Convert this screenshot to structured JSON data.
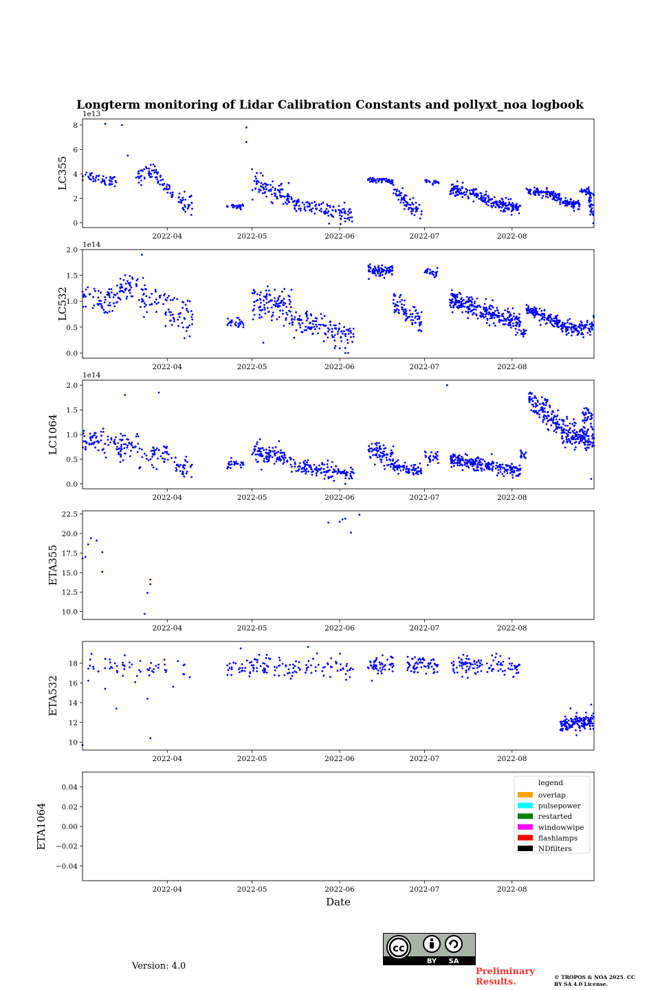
{
  "figure": {
    "title": "Longterm monitoring of Lidar Calibration Constants and pollyxt_noa logbook",
    "xlabel": "Date",
    "version": "Version: 4.0",
    "preliminary": "Preliminary Results.",
    "copyright": "© TROPOS & NOA 2025. CC BY SA 4.0 License.",
    "cc_labels": [
      "cc",
      "BY",
      "SA"
    ]
  },
  "colors": {
    "points": "#0000ff",
    "overlap": "#ffa500",
    "pulsepower": "#00ffff",
    "restarted": "#008000",
    "windowwipe": "#ff00ff",
    "flashlamps": "#ff0000",
    "NDfilters": "#000000"
  },
  "chart_data": [
    {
      "type": "scatter",
      "ylabel": "LC355",
      "offset_label": "1e13",
      "x_ticks": [
        "2022-04",
        "2022-05",
        "2022-06",
        "2022-07",
        "2022-08"
      ],
      "y_ticks": [
        "0",
        "2",
        "4",
        "6",
        "8"
      ],
      "y_tick_values": [
        0,
        2,
        4,
        6,
        8
      ],
      "ylim": [
        -0.4,
        8.5
      ],
      "xlim": [
        "2022-03-02",
        "2022-08-30"
      ],
      "series": [
        {
          "segments": [
            {
              "start": "2022-03-02",
              "end": "2022-03-14",
              "y0": 3.9,
              "y1": 3.4,
              "sd": 0.25,
              "n": 50
            },
            {
              "start": "2022-03-20",
              "end": "2022-03-28",
              "y0": 3.5,
              "y1": 4.4,
              "sd": 0.3,
              "n": 40
            },
            {
              "start": "2022-03-28",
              "end": "2022-04-03",
              "y0": 3.7,
              "y1": 2.4,
              "sd": 0.3,
              "n": 35
            },
            {
              "start": "2022-04-05",
              "end": "2022-04-10",
              "y0": 1.8,
              "y1": 1.5,
              "sd": 0.4,
              "n": 30
            },
            {
              "start": "2022-04-22",
              "end": "2022-04-28",
              "y0": 1.4,
              "y1": 1.3,
              "sd": 0.1,
              "n": 25
            },
            {
              "start": "2022-05-01",
              "end": "2022-05-15",
              "y0": 3.3,
              "y1": 2.0,
              "sd": 0.4,
              "n": 90
            },
            {
              "start": "2022-05-15",
              "end": "2022-06-06",
              "y0": 1.6,
              "y1": 0.5,
              "sd": 0.35,
              "n": 110
            },
            {
              "start": "2022-06-11",
              "end": "2022-06-20",
              "y0": 3.5,
              "y1": 3.4,
              "sd": 0.08,
              "n": 60
            },
            {
              "start": "2022-06-20",
              "end": "2022-06-30",
              "y0": 2.6,
              "y1": 0.7,
              "sd": 0.4,
              "n": 70
            },
            {
              "start": "2022-07-01",
              "end": "2022-07-06",
              "y0": 3.4,
              "y1": 3.3,
              "sd": 0.08,
              "n": 25
            },
            {
              "start": "2022-07-10",
              "end": "2022-08-04",
              "y0": 2.8,
              "y1": 1.1,
              "sd": 0.25,
              "n": 230
            },
            {
              "start": "2022-08-06",
              "end": "2022-08-18",
              "y0": 2.7,
              "y1": 2.1,
              "sd": 0.2,
              "n": 100
            },
            {
              "start": "2022-08-18",
              "end": "2022-08-25",
              "y0": 1.7,
              "y1": 1.5,
              "sd": 0.2,
              "n": 60
            },
            {
              "start": "2022-08-25",
              "end": "2022-08-30",
              "y0": 2.6,
              "y1": 2.5,
              "sd": 0.15,
              "n": 30
            },
            {
              "start": "2022-08-28",
              "end": "2022-08-30",
              "y0": 1.7,
              "y1": 0.9,
              "sd": 0.4,
              "n": 25
            }
          ]
        }
      ],
      "outliers": [
        [
          "2022-03-10",
          8.1
        ],
        [
          "2022-03-16",
          8.0
        ],
        [
          "2022-03-18",
          5.5
        ],
        [
          "2022-04-29",
          7.8
        ],
        [
          "2022-04-29",
          6.6
        ],
        [
          "2022-06-03",
          0.1
        ]
      ]
    },
    {
      "type": "scatter",
      "ylabel": "LC532",
      "offset_label": "1e14",
      "x_ticks": [
        "2022-04",
        "2022-05",
        "2022-06",
        "2022-07",
        "2022-08"
      ],
      "y_ticks": [
        "0.0",
        "0.5",
        "1.0",
        "1.5",
        "2.0"
      ],
      "y_tick_values": [
        0,
        0.5,
        1.0,
        1.5,
        2.0
      ],
      "ylim": [
        -0.1,
        2.0
      ],
      "xlim": [
        "2022-03-02",
        "2022-08-30"
      ],
      "series": [
        {
          "segments": [
            {
              "start": "2022-03-02",
              "end": "2022-03-14",
              "y0": 1.05,
              "y1": 0.95,
              "sd": 0.15,
              "n": 60
            },
            {
              "start": "2022-03-14",
              "end": "2022-03-22",
              "y0": 1.2,
              "y1": 1.3,
              "sd": 0.12,
              "n": 50
            },
            {
              "start": "2022-03-22",
              "end": "2022-04-04",
              "y0": 1.1,
              "y1": 0.8,
              "sd": 0.18,
              "n": 60
            },
            {
              "start": "2022-04-04",
              "end": "2022-04-10",
              "y0": 0.7,
              "y1": 0.6,
              "sd": 0.2,
              "n": 30
            },
            {
              "start": "2022-04-22",
              "end": "2022-04-28",
              "y0": 0.6,
              "y1": 0.55,
              "sd": 0.05,
              "n": 25
            },
            {
              "start": "2022-05-01",
              "end": "2022-05-15",
              "y0": 1.0,
              "y1": 0.9,
              "sd": 0.15,
              "n": 110
            },
            {
              "start": "2022-05-15",
              "end": "2022-06-06",
              "y0": 0.65,
              "y1": 0.3,
              "sd": 0.12,
              "n": 130
            },
            {
              "start": "2022-06-11",
              "end": "2022-06-20",
              "y0": 1.6,
              "y1": 1.6,
              "sd": 0.05,
              "n": 80
            },
            {
              "start": "2022-06-20",
              "end": "2022-06-30",
              "y0": 1.0,
              "y1": 0.55,
              "sd": 0.12,
              "n": 80
            },
            {
              "start": "2022-07-01",
              "end": "2022-07-06",
              "y0": 1.58,
              "y1": 1.55,
              "sd": 0.04,
              "n": 25
            },
            {
              "start": "2022-07-10",
              "end": "2022-08-04",
              "y0": 1.05,
              "y1": 0.55,
              "sd": 0.1,
              "n": 280
            },
            {
              "start": "2022-08-04",
              "end": "2022-08-06",
              "y0": 0.35,
              "y1": 0.4,
              "sd": 0.05,
              "n": 15
            },
            {
              "start": "2022-08-06",
              "end": "2022-08-18",
              "y0": 0.85,
              "y1": 0.55,
              "sd": 0.06,
              "n": 120
            },
            {
              "start": "2022-08-18",
              "end": "2022-08-24",
              "y0": 0.5,
              "y1": 0.45,
              "sd": 0.06,
              "n": 60
            },
            {
              "start": "2022-08-24",
              "end": "2022-08-30",
              "y0": 0.4,
              "y1": 0.6,
              "sd": 0.12,
              "n": 50
            }
          ]
        }
      ],
      "outliers": [
        [
          "2022-03-23",
          1.9
        ],
        [
          "2022-04-09",
          1.0
        ],
        [
          "2022-05-05",
          0.2
        ],
        [
          "2022-06-03",
          0.0
        ],
        [
          "2022-06-04",
          0.0
        ]
      ]
    },
    {
      "type": "scatter",
      "ylabel": "LC1064",
      "offset_label": "1e14",
      "x_ticks": [
        "2022-04",
        "2022-05",
        "2022-06",
        "2022-07",
        "2022-08"
      ],
      "y_ticks": [
        "0.0",
        "0.5",
        "1.0",
        "1.5",
        "2.0"
      ],
      "y_tick_values": [
        0,
        0.5,
        1.0,
        1.5,
        2.0
      ],
      "ylim": [
        -0.1,
        2.1
      ],
      "xlim": [
        "2022-03-02",
        "2022-08-30"
      ],
      "series": [
        {
          "segments": [
            {
              "start": "2022-03-02",
              "end": "2022-03-14",
              "y0": 0.9,
              "y1": 0.85,
              "sd": 0.1,
              "n": 60
            },
            {
              "start": "2022-03-14",
              "end": "2022-03-22",
              "y0": 0.75,
              "y1": 0.8,
              "sd": 0.12,
              "n": 50
            },
            {
              "start": "2022-03-22",
              "end": "2022-04-04",
              "y0": 0.6,
              "y1": 0.55,
              "sd": 0.15,
              "n": 50
            },
            {
              "start": "2022-04-04",
              "end": "2022-04-10",
              "y0": 0.35,
              "y1": 0.35,
              "sd": 0.08,
              "n": 30
            },
            {
              "start": "2022-04-22",
              "end": "2022-04-28",
              "y0": 0.4,
              "y1": 0.42,
              "sd": 0.05,
              "n": 25
            },
            {
              "start": "2022-05-01",
              "end": "2022-05-15",
              "y0": 0.65,
              "y1": 0.55,
              "sd": 0.1,
              "n": 110
            },
            {
              "start": "2022-05-15",
              "end": "2022-06-06",
              "y0": 0.35,
              "y1": 0.2,
              "sd": 0.08,
              "n": 130
            },
            {
              "start": "2022-06-11",
              "end": "2022-06-20",
              "y0": 0.7,
              "y1": 0.55,
              "sd": 0.1,
              "n": 80
            },
            {
              "start": "2022-06-20",
              "end": "2022-06-30",
              "y0": 0.35,
              "y1": 0.25,
              "sd": 0.06,
              "n": 80
            },
            {
              "start": "2022-07-01",
              "end": "2022-07-06",
              "y0": 0.55,
              "y1": 0.55,
              "sd": 0.06,
              "n": 25
            },
            {
              "start": "2022-07-10",
              "end": "2022-08-04",
              "y0": 0.5,
              "y1": 0.25,
              "sd": 0.07,
              "n": 230
            },
            {
              "start": "2022-08-04",
              "end": "2022-08-06",
              "y0": 0.6,
              "y1": 0.55,
              "sd": 0.05,
              "n": 15
            },
            {
              "start": "2022-08-07",
              "end": "2022-08-18",
              "y0": 1.7,
              "y1": 1.2,
              "sd": 0.12,
              "n": 130
            },
            {
              "start": "2022-08-18",
              "end": "2022-08-24",
              "y0": 1.05,
              "y1": 0.95,
              "sd": 0.15,
              "n": 80
            },
            {
              "start": "2022-08-24",
              "end": "2022-08-30",
              "y0": 1.0,
              "y1": 0.85,
              "sd": 0.12,
              "n": 80
            },
            {
              "start": "2022-08-26",
              "end": "2022-08-30",
              "y0": 1.4,
              "y1": 1.3,
              "sd": 0.1,
              "n": 40
            }
          ]
        }
      ],
      "outliers": [
        [
          "2022-03-17",
          1.8
        ],
        [
          "2022-03-29",
          1.85
        ],
        [
          "2022-06-03",
          0.0
        ],
        [
          "2022-07-09",
          2.0
        ],
        [
          "2022-08-29",
          0.1
        ]
      ]
    },
    {
      "type": "scatter",
      "ylabel": "ETA355",
      "x_ticks": [
        "2022-04",
        "2022-05",
        "2022-06",
        "2022-07",
        "2022-08"
      ],
      "y_ticks": [
        "10.0",
        "12.5",
        "15.0",
        "17.5",
        "20.0",
        "22.5"
      ],
      "y_tick_values": [
        10,
        12.5,
        15,
        17.5,
        20,
        22.5
      ],
      "ylim": [
        9.0,
        22.9
      ],
      "xlim": [
        "2022-03-02",
        "2022-08-30"
      ],
      "points": [
        [
          "2022-03-02",
          16.8
        ],
        [
          "2022-03-03",
          17.0
        ],
        [
          "2022-03-04",
          18.6
        ],
        [
          "2022-03-05",
          19.4
        ],
        [
          "2022-03-07",
          19.1
        ],
        [
          "2022-03-09",
          17.6
        ],
        [
          "2022-03-09",
          15.1
        ],
        [
          "2022-03-24",
          9.7
        ],
        [
          "2022-03-25",
          12.4
        ],
        [
          "2022-03-26",
          14.1
        ],
        [
          "2022-03-26",
          13.5
        ],
        [
          "2022-05-28",
          21.4
        ],
        [
          "2022-06-01",
          21.5
        ],
        [
          "2022-06-02",
          21.8
        ],
        [
          "2022-06-03",
          21.9
        ],
        [
          "2022-06-05",
          20.1
        ],
        [
          "2022-06-08",
          22.4
        ]
      ]
    },
    {
      "type": "scatter",
      "ylabel": "ETA532",
      "x_ticks": [
        "2022-04",
        "2022-05",
        "2022-06",
        "2022-07",
        "2022-08"
      ],
      "y_ticks": [
        "10",
        "12",
        "14",
        "16",
        "18"
      ],
      "y_tick_values": [
        10,
        12,
        14,
        16,
        18
      ],
      "ylim": [
        9.2,
        20.2
      ],
      "xlim": [
        "2022-03-02",
        "2022-08-30"
      ],
      "series": [
        {
          "segments": [
            {
              "start": "2022-03-03",
              "end": "2022-04-10",
              "y0": 17.6,
              "y1": 17.4,
              "sd": 0.6,
              "n": 60
            },
            {
              "start": "2022-04-22",
              "end": "2022-06-06",
              "y0": 17.5,
              "y1": 17.6,
              "sd": 0.55,
              "n": 130
            },
            {
              "start": "2022-06-11",
              "end": "2022-06-20",
              "y0": 17.8,
              "y1": 17.7,
              "sd": 0.5,
              "n": 50
            },
            {
              "start": "2022-06-25",
              "end": "2022-07-06",
              "y0": 17.9,
              "y1": 17.8,
              "sd": 0.45,
              "n": 60
            },
            {
              "start": "2022-07-10",
              "end": "2022-07-20",
              "y0": 17.8,
              "y1": 17.8,
              "sd": 0.5,
              "n": 55
            },
            {
              "start": "2022-07-20",
              "end": "2022-08-04",
              "y0": 17.8,
              "y1": 17.6,
              "sd": 0.5,
              "n": 55
            },
            {
              "start": "2022-08-18",
              "end": "2022-08-30",
              "y0": 11.9,
              "y1": 12.0,
              "sd": 0.45,
              "n": 150
            }
          ]
        }
      ],
      "outliers": [
        [
          "2022-03-02",
          9.7
        ],
        [
          "2022-03-10",
          15.4
        ],
        [
          "2022-03-14",
          13.4
        ],
        [
          "2022-03-25",
          14.4
        ],
        [
          "2022-03-26",
          10.4
        ],
        [
          "2022-04-27",
          19.5
        ],
        [
          "2022-08-29",
          13.8
        ]
      ]
    },
    {
      "type": "scatter",
      "ylabel": "ETA1064",
      "x_ticks": [
        "2022-04",
        "2022-05",
        "2022-06",
        "2022-07",
        "2022-08"
      ],
      "y_ticks": [
        "−0.04",
        "−0.02",
        "0.00",
        "0.02",
        "0.04"
      ],
      "y_tick_values": [
        -0.04,
        -0.02,
        0,
        0.02,
        0.04
      ],
      "ylim": [
        -0.055,
        0.055
      ],
      "xlim": [
        "2022-03-02",
        "2022-08-30"
      ],
      "points": [],
      "legend": {
        "title": "legend",
        "placement": "upper right",
        "entries": [
          "overlap",
          "pulsepower",
          "restarted",
          "windowwipe",
          "flashlamps",
          "NDfilters"
        ]
      }
    }
  ]
}
